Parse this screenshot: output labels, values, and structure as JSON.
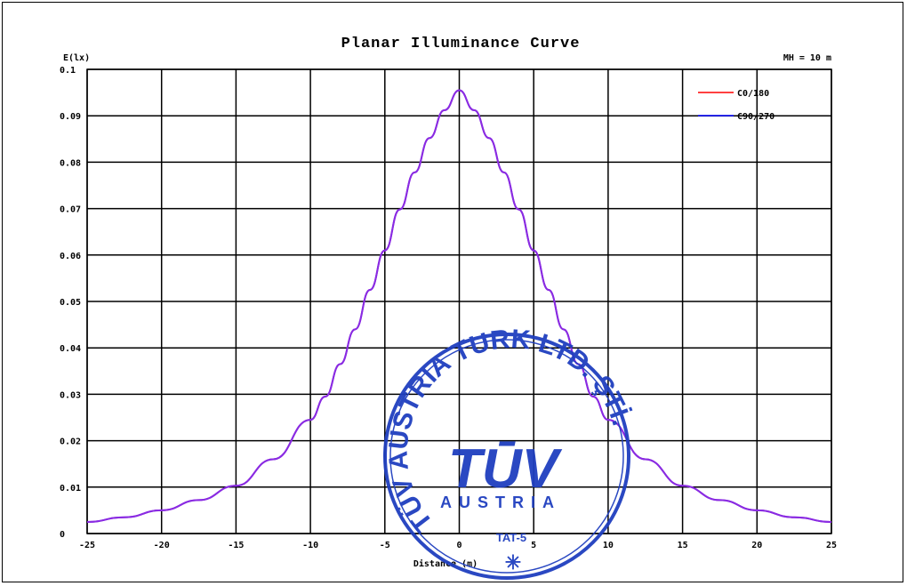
{
  "chart_data": {
    "type": "line",
    "title": "Planar Illuminance Curve",
    "ylabel": "E(lx)",
    "xlabel": "Distance (m)",
    "mounting_height": "MH = 10 m",
    "xlim": [
      -25,
      25
    ],
    "ylim": [
      0,
      0.1
    ],
    "xticks": [
      "-25",
      "-20",
      "-15",
      "-10",
      "-5",
      "0",
      "5",
      "10",
      "15",
      "20",
      "25"
    ],
    "yticks": [
      "0",
      "0.01",
      "0.02",
      "0.03",
      "0.04",
      "0.05",
      "0.06",
      "0.07",
      "0.08",
      "0.09",
      "0.1"
    ],
    "grid": true,
    "legend_position": "top-right",
    "x": [
      -25,
      -22.5,
      -20,
      -17.5,
      -15,
      -12.5,
      -10,
      -9,
      -8,
      -7,
      -6,
      -5,
      -4,
      -3,
      -2,
      -1,
      0,
      1,
      2,
      3,
      4,
      5,
      6,
      7,
      8,
      9,
      10,
      12.5,
      15,
      17.5,
      20,
      22.5,
      25
    ],
    "series": [
      {
        "name": "C0/180",
        "color": "#ff0000",
        "values": [
          0.0025,
          0.0035,
          0.005,
          0.0072,
          0.0103,
          0.016,
          0.0245,
          0.0295,
          0.0365,
          0.044,
          0.0525,
          0.061,
          0.0698,
          0.0778,
          0.0852,
          0.0912,
          0.0955,
          0.0912,
          0.0852,
          0.0778,
          0.0698,
          0.061,
          0.0525,
          0.044,
          0.0365,
          0.0295,
          0.0245,
          0.016,
          0.0103,
          0.0072,
          0.005,
          0.0035,
          0.0025
        ]
      },
      {
        "name": "C90/270",
        "color": "#0000ff",
        "values": [
          0.0025,
          0.0035,
          0.005,
          0.0072,
          0.0103,
          0.016,
          0.0245,
          0.0295,
          0.0365,
          0.044,
          0.0525,
          0.061,
          0.0698,
          0.0778,
          0.0852,
          0.0912,
          0.0955,
          0.0912,
          0.0852,
          0.0778,
          0.0698,
          0.061,
          0.0525,
          0.044,
          0.0365,
          0.0295,
          0.0245,
          0.016,
          0.0103,
          0.0072,
          0.005,
          0.0035,
          0.0025
        ]
      }
    ],
    "curve_color": "#8a2be2"
  },
  "stamp": {
    "arc_text": "TÜV AUSTRIA TURK LTD. ŞTİ.",
    "logo": "TŪV",
    "sub": "AUSTRIA",
    "code": "TAT-5",
    "color": "#1f3fbf"
  }
}
